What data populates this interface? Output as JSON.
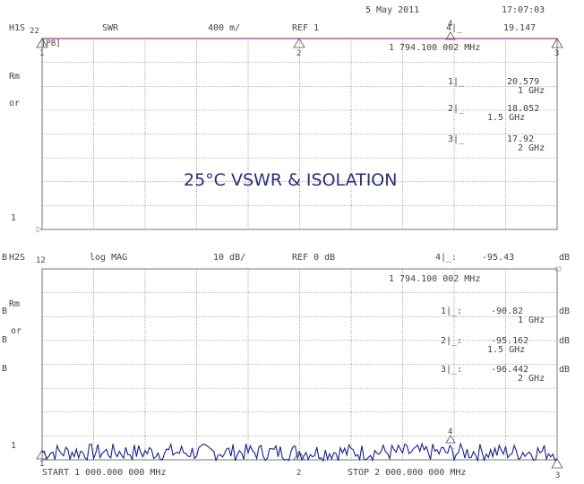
{
  "header": {
    "date": "5 May 2011",
    "time": "17:07:03"
  },
  "chart_data": [
    {
      "type": "line",
      "channel": "H1S",
      "param": "22",
      "format": "SWR",
      "scale": "400 m/",
      "ref": "REF 1",
      "ref_level_label": "1",
      "side_label_1": "Rm",
      "side_label_2": "or",
      "box_label": "[PB]",
      "xlim": [
        1000,
        2000
      ],
      "ylim": [
        1,
        5
      ],
      "x": [
        1000,
        1500,
        2000
      ],
      "y": [
        5,
        5,
        5
      ],
      "active_marker": {
        "label": "4|_",
        "value": "19.147",
        "freq": "1 794.100 002 MHz"
      },
      "markers": [
        {
          "id": "1",
          "label": "1|_",
          "value": "20.579",
          "freq": "1 GHz"
        },
        {
          "id": "2",
          "label": "2|_",
          "value": "18.052",
          "freq": "1.5 GHz"
        },
        {
          "id": "3",
          "label": "3|_",
          "value": "17.92",
          "freq": "2 GHz"
        }
      ],
      "marker_numbers": [
        "1",
        "2",
        "3",
        "4"
      ]
    },
    {
      "type": "line",
      "channel": "H2S",
      "param": "12",
      "format": "log MAG",
      "scale": "10 dB/",
      "ref": "REF 0 dB",
      "ref_level_label": "1",
      "side_label_1": "Rm",
      "side_label_2": "or",
      "unit": "dB",
      "xlim": [
        1000,
        2000
      ],
      "ylim": [
        -100,
        0
      ],
      "active_marker": {
        "label": "4|_:",
        "value": "-95.43",
        "unit": "dB",
        "freq": "1 794.100 002 MHz"
      },
      "markers": [
        {
          "id": "1",
          "label": "1|_:",
          "value": "-90.82",
          "freq": "1 GHz",
          "unit": "dB"
        },
        {
          "id": "2",
          "label": "2|_:",
          "value": "-95.162",
          "freq": "1.5 GHz",
          "unit": "dB"
        },
        {
          "id": "3",
          "label": "3|_:",
          "value": "-96.442",
          "freq": "2 GHz",
          "unit": "dB"
        }
      ],
      "marker_numbers": [
        "1",
        "2",
        "3",
        "4"
      ],
      "start": "START 1 000.000 000 MHz",
      "stop": "STOP 2 000.000 000 MHz"
    }
  ],
  "banner": "25°C VSWR & ISOLATION",
  "colors": {
    "trace1": "#c0308a",
    "trace2": "#1a1f8c",
    "banner": "#2a2f78",
    "grid": "#555555"
  }
}
